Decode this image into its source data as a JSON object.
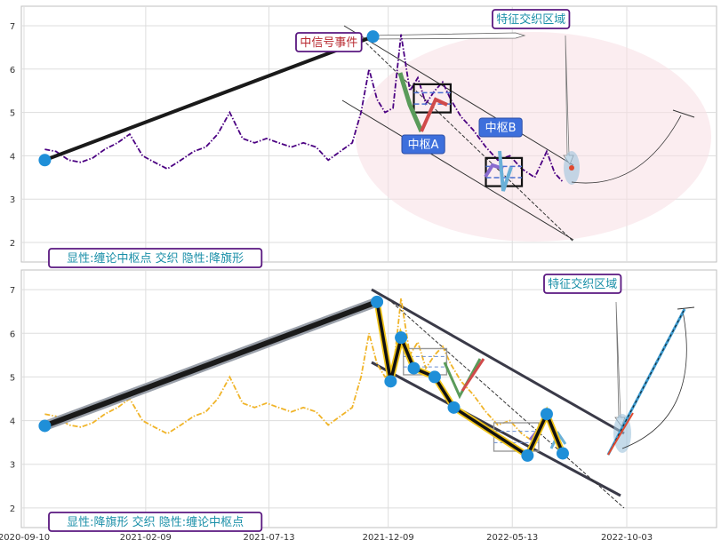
{
  "chart_data": [
    {
      "type": "line",
      "panel": "top",
      "ylim": [
        1.55,
        7.45
      ],
      "yticks": [
        2,
        3,
        4,
        5,
        6,
        7
      ],
      "grid": true,
      "series": [
        {
          "color": "#4b0082",
          "style": "dash-dot",
          "x": [
            "2020-10-06",
            "2020-10-20",
            "2020-11-05",
            "2020-11-20",
            "2020-12-05",
            "2020-12-20",
            "2021-01-05",
            "2021-01-20",
            "2021-02-05",
            "2021-02-20",
            "2021-03-08",
            "2021-03-25",
            "2021-04-10",
            "2021-04-25",
            "2021-05-10",
            "2021-05-25",
            "2021-06-10",
            "2021-06-25",
            "2021-07-10",
            "2021-07-25",
            "2021-08-10",
            "2021-08-25",
            "2021-09-10",
            "2021-09-25",
            "2021-10-10",
            "2021-10-25",
            "2021-11-05",
            "2021-11-15",
            "2021-11-25",
            "2021-12-05",
            "2021-12-15",
            "2021-12-25",
            "2022-01-05",
            "2022-01-15",
            "2022-01-25",
            "2022-02-05",
            "2022-02-15",
            "2022-02-25",
            "2022-03-10",
            "2022-03-25",
            "2022-04-10",
            "2022-04-25",
            "2022-05-10",
            "2022-05-25",
            "2022-06-10",
            "2022-06-25",
            "2022-07-05",
            "2022-07-15"
          ],
          "y": [
            4.15,
            4.1,
            3.9,
            3.85,
            3.95,
            4.15,
            4.3,
            4.5,
            4.0,
            3.85,
            3.7,
            3.9,
            4.1,
            4.2,
            4.5,
            5.0,
            4.4,
            4.3,
            4.4,
            4.3,
            4.2,
            4.3,
            4.2,
            3.9,
            4.1,
            4.3,
            5.0,
            6.0,
            5.3,
            5.0,
            5.1,
            6.8,
            5.5,
            5.8,
            5.2,
            5.5,
            5.7,
            5.3,
            4.9,
            4.6,
            4.2,
            3.9,
            4.0,
            3.7,
            3.5,
            4.1,
            3.6,
            3.4
          ]
        }
      ],
      "annotations": [
        {
          "kind": "trendline",
          "x": [
            "2020-10-06",
            "2021-11-20"
          ],
          "y": [
            3.9,
            6.75
          ],
          "color": "#1a1a1a"
        },
        {
          "kind": "pivot",
          "x": "2020-10-06",
          "y": 3.9
        },
        {
          "kind": "pivot",
          "x": "2021-11-20",
          "y": 6.75
        },
        {
          "kind": "event_label",
          "text": "中信号事件",
          "x": "2021-10-10",
          "y": 6.55
        },
        {
          "kind": "pivot_box",
          "label": "中枢A",
          "x": [
            "2022-01-10",
            "2022-02-25"
          ],
          "y": [
            5.0,
            5.65
          ],
          "label_pos": {
            "x": "2022-01-25",
            "y": 4.25
          }
        },
        {
          "kind": "pivot_box",
          "label": "中枢B",
          "x": [
            "2022-04-10",
            "2022-05-25"
          ],
          "y": [
            3.3,
            3.95
          ],
          "label_pos": {
            "x": "2022-05-10",
            "y": 4.65
          }
        },
        {
          "kind": "zone_label",
          "text": "特征交织区域",
          "x": "2022-06-05",
          "y": 7.05
        },
        {
          "kind": "result_text",
          "text": "显性:缠论中枢点 交织 隐性:降旗形"
        }
      ]
    },
    {
      "type": "line",
      "panel": "bottom",
      "ylim": [
        1.55,
        7.45
      ],
      "yticks": [
        2,
        3,
        4,
        5,
        6,
        7
      ],
      "grid": true,
      "xticks": [
        "2020-09-10",
        "2021-02-09",
        "2021-07-13",
        "2021-12-09",
        "2022-05-13",
        "2022-10-03"
      ],
      "series": [
        {
          "color": "#f0b429",
          "style": "dash-dot",
          "x": [
            "2020-10-06",
            "2020-10-20",
            "2020-11-05",
            "2020-11-20",
            "2020-12-05",
            "2020-12-20",
            "2021-01-05",
            "2021-01-20",
            "2021-02-05",
            "2021-02-20",
            "2021-03-08",
            "2021-03-25",
            "2021-04-10",
            "2021-04-25",
            "2021-05-10",
            "2021-05-25",
            "2021-06-10",
            "2021-06-25",
            "2021-07-10",
            "2021-07-25",
            "2021-08-10",
            "2021-08-25",
            "2021-09-10",
            "2021-09-25",
            "2021-10-10",
            "2021-10-25",
            "2021-11-05",
            "2021-11-15",
            "2021-11-25",
            "2021-12-05",
            "2021-12-15",
            "2021-12-25",
            "2022-01-05",
            "2022-01-15",
            "2022-01-25",
            "2022-02-05",
            "2022-02-15",
            "2022-02-25",
            "2022-03-10",
            "2022-03-25",
            "2022-04-10",
            "2022-04-25",
            "2022-05-10",
            "2022-05-25",
            "2022-06-10",
            "2022-06-25",
            "2022-07-05",
            "2022-07-15"
          ],
          "y": [
            4.15,
            4.1,
            3.9,
            3.85,
            3.95,
            4.15,
            4.3,
            4.5,
            4.0,
            3.85,
            3.7,
            3.9,
            4.1,
            4.2,
            4.5,
            5.0,
            4.4,
            4.3,
            4.4,
            4.3,
            4.2,
            4.3,
            4.2,
            3.9,
            4.1,
            4.3,
            5.0,
            6.0,
            5.3,
            5.0,
            5.1,
            6.8,
            5.5,
            5.8,
            5.2,
            5.5,
            5.7,
            5.3,
            4.9,
            4.6,
            4.2,
            3.9,
            4.0,
            3.7,
            3.5,
            4.1,
            3.6,
            3.4
          ]
        }
      ],
      "annotations": [
        {
          "kind": "trendline",
          "x": [
            "2020-10-06",
            "2021-11-25"
          ],
          "y": [
            3.88,
            6.72
          ],
          "color": "#1a1a1a"
        },
        {
          "kind": "zigzag",
          "x": [
            "2021-11-25",
            "2021-12-12",
            "2021-12-25",
            "2022-01-10",
            "2022-02-05",
            "2022-03-01",
            "2022-06-01",
            "2022-06-25",
            "2022-07-15"
          ],
          "y": [
            6.72,
            4.9,
            5.9,
            5.2,
            5.0,
            4.3,
            3.2,
            4.15,
            3.25
          ]
        },
        {
          "kind": "pivot_box",
          "x": [
            "2021-12-28",
            "2022-02-20"
          ],
          "y": [
            5.05,
            5.65
          ]
        },
        {
          "kind": "pivot_box",
          "x": [
            "2022-04-20",
            "2022-06-15"
          ],
          "y": [
            3.3,
            3.95
          ]
        },
        {
          "kind": "zone_label",
          "text": "特征交织区域",
          "x": "2022-06-25",
          "y": 7.05
        },
        {
          "kind": "result_text",
          "text": "显性:降旗形 交织 隐性:缠论中枢点"
        }
      ]
    }
  ]
}
